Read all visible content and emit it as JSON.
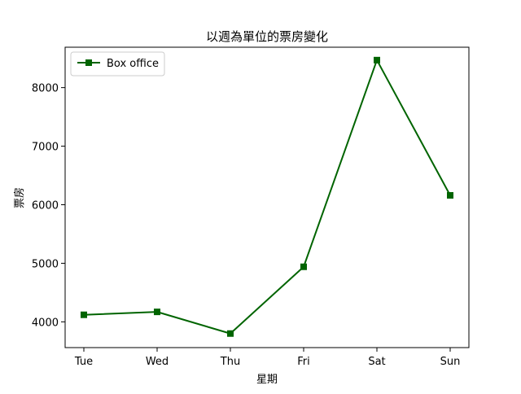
{
  "chart_data": {
    "type": "line",
    "title": "以週為單位的票房變化",
    "xlabel": "星期",
    "ylabel": "票房",
    "categories": [
      "Tue",
      "Wed",
      "Thu",
      "Fri",
      "Sat",
      "Sun"
    ],
    "series": [
      {
        "name": "Box office",
        "values": [
          4120,
          4170,
          3800,
          4940,
          8470,
          6160
        ],
        "color": "#006400",
        "marker": "square"
      }
    ],
    "yticks": [
      4000,
      5000,
      6000,
      7000,
      8000
    ],
    "ylim": [
      3560,
      8690
    ],
    "grid": false,
    "legend_position": "top-left"
  }
}
